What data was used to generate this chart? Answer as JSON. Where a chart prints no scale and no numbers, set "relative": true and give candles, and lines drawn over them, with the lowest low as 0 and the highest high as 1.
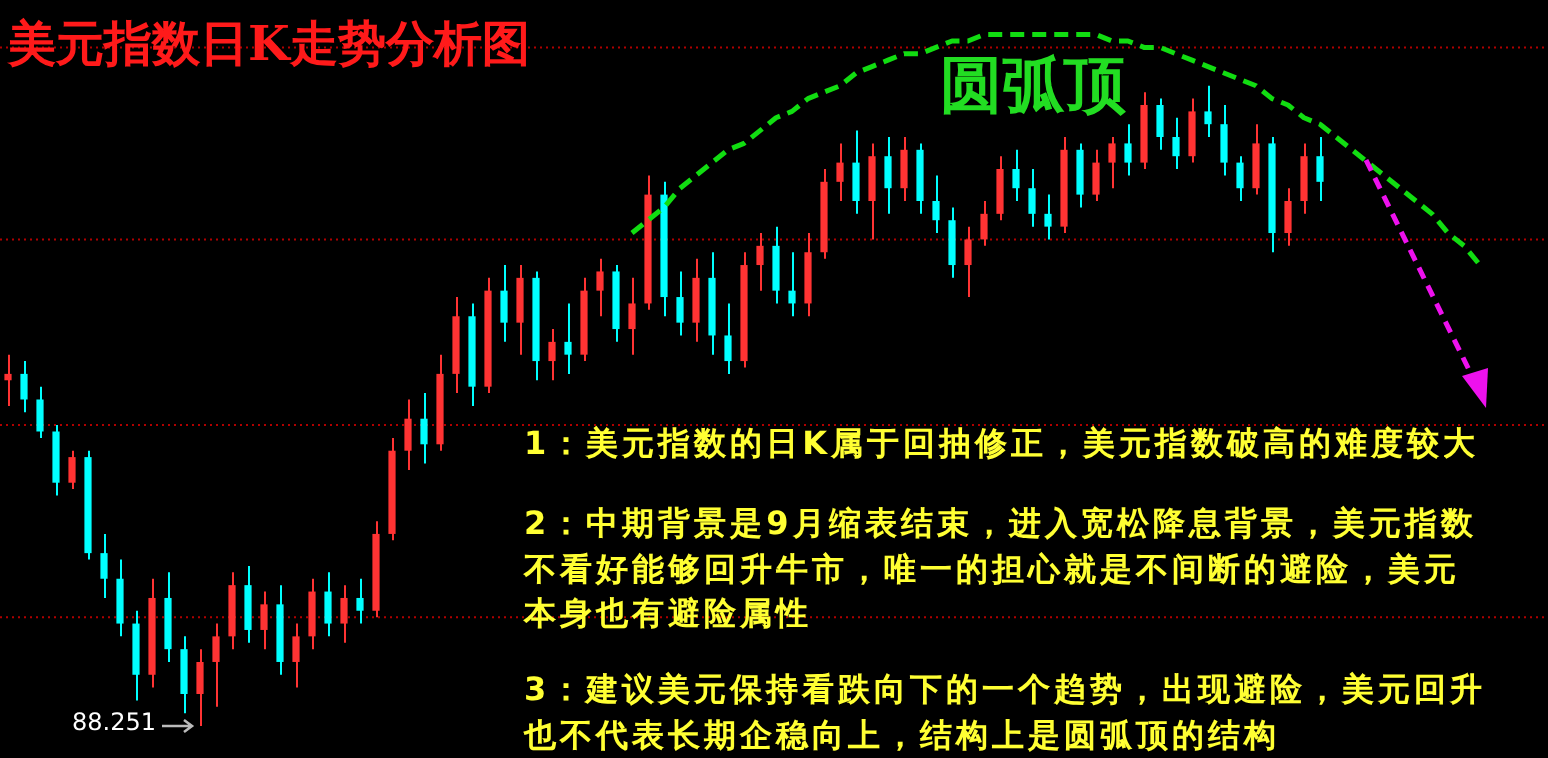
{
  "chart_data": {
    "type": "candlestick",
    "relative": true,
    "title": "美元指数日K走势分析图",
    "annotations": [
      "88.251",
      "圆弧顶",
      "1：美元指数的日K属于回抽修正，美元指数破高的难度较大",
      "2：中期背景是9月缩表结束，进入宽松降息背景，美元指数不看好能够回升牛市，唯一的担心就是不间断的避险，美元本身也有避险属性",
      "3：建议美元保持看跌向下的一个趋势，出现避险，美元回升也不代表长期企稳向上，结构上是圆弧顶的结构"
    ],
    "ref_lines": [
      {
        "axis": "y",
        "value": 1.06,
        "color": "#b00000",
        "line_style": "dotted"
      },
      {
        "axis": "y",
        "value": 0.76,
        "color": "#b00000",
        "line_style": "dotted"
      },
      {
        "axis": "y",
        "value": 0.47,
        "color": "#b00000",
        "line_style": "dotted"
      },
      {
        "axis": "y",
        "value": 0.17,
        "color": "#b00000",
        "line_style": "dotted"
      }
    ],
    "categories": [
      null,
      null,
      null,
      null,
      null,
      null,
      null,
      null,
      null,
      null,
      null,
      null,
      null,
      null,
      null,
      null,
      null,
      null,
      null,
      null,
      null,
      null,
      null,
      null,
      null,
      null,
      null,
      null,
      null,
      null,
      null,
      null,
      null,
      null,
      null,
      null,
      null,
      null,
      null,
      null,
      null,
      null,
      null,
      null,
      null,
      null,
      null,
      null,
      null,
      null,
      null,
      null,
      null,
      null,
      null,
      null,
      null,
      null,
      null,
      null,
      null,
      null,
      null,
      null,
      null,
      null,
      null,
      null,
      null,
      null,
      null,
      null,
      null,
      null,
      null,
      null,
      null,
      null,
      null,
      null,
      null,
      null,
      null,
      null,
      null,
      null,
      null,
      null,
      null,
      null,
      null,
      null,
      null
    ],
    "ohlc": [
      [
        0.54,
        0.58,
        0.5,
        0.55
      ],
      [
        0.55,
        0.57,
        0.49,
        0.51
      ],
      [
        0.51,
        0.53,
        0.45,
        0.46
      ],
      [
        0.46,
        0.47,
        0.36,
        0.38
      ],
      [
        0.38,
        0.43,
        0.37,
        0.42
      ],
      [
        0.42,
        0.43,
        0.26,
        0.27
      ],
      [
        0.27,
        0.3,
        0.2,
        0.23
      ],
      [
        0.23,
        0.26,
        0.14,
        0.16
      ],
      [
        0.16,
        0.18,
        0.04,
        0.08
      ],
      [
        0.08,
        0.23,
        0.06,
        0.2
      ],
      [
        0.2,
        0.24,
        0.1,
        0.12
      ],
      [
        0.12,
        0.14,
        0.02,
        0.05
      ],
      [
        0.05,
        0.12,
        0.0,
        0.1
      ],
      [
        0.1,
        0.16,
        0.03,
        0.14
      ],
      [
        0.14,
        0.24,
        0.12,
        0.22
      ],
      [
        0.22,
        0.25,
        0.13,
        0.15
      ],
      [
        0.15,
        0.21,
        0.12,
        0.19
      ],
      [
        0.19,
        0.22,
        0.08,
        0.1
      ],
      [
        0.1,
        0.16,
        0.06,
        0.14
      ],
      [
        0.14,
        0.23,
        0.12,
        0.21
      ],
      [
        0.21,
        0.24,
        0.14,
        0.16
      ],
      [
        0.16,
        0.22,
        0.13,
        0.2
      ],
      [
        0.2,
        0.23,
        0.16,
        0.18
      ],
      [
        0.18,
        0.32,
        0.17,
        0.3
      ],
      [
        0.3,
        0.45,
        0.29,
        0.43
      ],
      [
        0.43,
        0.51,
        0.4,
        0.48
      ],
      [
        0.48,
        0.52,
        0.41,
        0.44
      ],
      [
        0.44,
        0.58,
        0.43,
        0.55
      ],
      [
        0.55,
        0.67,
        0.52,
        0.64
      ],
      [
        0.64,
        0.66,
        0.5,
        0.53
      ],
      [
        0.53,
        0.7,
        0.52,
        0.68
      ],
      [
        0.68,
        0.72,
        0.6,
        0.63
      ],
      [
        0.63,
        0.72,
        0.58,
        0.7
      ],
      [
        0.7,
        0.71,
        0.54,
        0.57
      ],
      [
        0.57,
        0.62,
        0.54,
        0.6
      ],
      [
        0.6,
        0.66,
        0.55,
        0.58
      ],
      [
        0.58,
        0.7,
        0.57,
        0.68
      ],
      [
        0.68,
        0.73,
        0.64,
        0.71
      ],
      [
        0.71,
        0.72,
        0.6,
        0.62
      ],
      [
        0.62,
        0.7,
        0.58,
        0.66
      ],
      [
        0.66,
        0.86,
        0.65,
        0.83
      ],
      [
        0.83,
        0.85,
        0.64,
        0.67
      ],
      [
        0.67,
        0.71,
        0.61,
        0.63
      ],
      [
        0.63,
        0.73,
        0.6,
        0.7
      ],
      [
        0.7,
        0.74,
        0.58,
        0.61
      ],
      [
        0.61,
        0.66,
        0.55,
        0.57
      ],
      [
        0.57,
        0.74,
        0.56,
        0.72
      ],
      [
        0.72,
        0.77,
        0.68,
        0.75
      ],
      [
        0.75,
        0.78,
        0.66,
        0.68
      ],
      [
        0.68,
        0.74,
        0.64,
        0.66
      ],
      [
        0.66,
        0.77,
        0.64,
        0.74
      ],
      [
        0.74,
        0.87,
        0.73,
        0.85
      ],
      [
        0.85,
        0.91,
        0.82,
        0.88
      ],
      [
        0.88,
        0.93,
        0.8,
        0.82
      ],
      [
        0.82,
        0.91,
        0.76,
        0.89
      ],
      [
        0.89,
        0.92,
        0.8,
        0.84
      ],
      [
        0.84,
        0.92,
        0.82,
        0.9
      ],
      [
        0.9,
        0.91,
        0.8,
        0.82
      ],
      [
        0.82,
        0.86,
        0.77,
        0.79
      ],
      [
        0.79,
        0.81,
        0.7,
        0.72
      ],
      [
        0.72,
        0.78,
        0.67,
        0.76
      ],
      [
        0.76,
        0.82,
        0.75,
        0.8
      ],
      [
        0.8,
        0.89,
        0.79,
        0.87
      ],
      [
        0.87,
        0.9,
        0.82,
        0.84
      ],
      [
        0.84,
        0.87,
        0.78,
        0.8
      ],
      [
        0.8,
        0.83,
        0.76,
        0.78
      ],
      [
        0.78,
        0.92,
        0.77,
        0.9
      ],
      [
        0.9,
        0.91,
        0.81,
        0.83
      ],
      [
        0.83,
        0.9,
        0.82,
        0.88
      ],
      [
        0.88,
        0.92,
        0.84,
        0.91
      ],
      [
        0.91,
        0.94,
        0.86,
        0.88
      ],
      [
        0.88,
        0.99,
        0.87,
        0.97
      ],
      [
        0.97,
        0.98,
        0.9,
        0.92
      ],
      [
        0.92,
        0.95,
        0.87,
        0.89
      ],
      [
        0.89,
        0.98,
        0.88,
        0.96
      ],
      [
        0.96,
        1.0,
        0.92,
        0.94
      ],
      [
        0.94,
        0.97,
        0.86,
        0.88
      ],
      [
        0.88,
        0.89,
        0.82,
        0.84
      ],
      [
        0.84,
        0.94,
        0.83,
        0.91
      ],
      [
        0.91,
        0.92,
        0.74,
        0.77
      ],
      [
        0.77,
        0.84,
        0.75,
        0.82
      ],
      [
        0.82,
        0.91,
        0.8,
        0.89
      ],
      [
        0.89,
        0.92,
        0.82,
        0.85
      ],
      null,
      null,
      null,
      null,
      null,
      null,
      null,
      null,
      null,
      null
    ],
    "series": [
      {
        "type": "line",
        "color": "#11dd11",
        "line_style": "dashed",
        "marker": "none",
        "values": [
          null,
          null,
          null,
          null,
          null,
          null,
          null,
          null,
          null,
          null,
          null,
          null,
          null,
          null,
          null,
          null,
          null,
          null,
          null,
          null,
          null,
          null,
          null,
          null,
          null,
          null,
          null,
          null,
          null,
          null,
          null,
          null,
          null,
          null,
          null,
          null,
          null,
          null,
          null,
          0.77,
          0.79,
          0.81,
          0.84,
          0.86,
          0.88,
          0.9,
          0.91,
          0.93,
          0.95,
          0.96,
          0.98,
          0.99,
          1.0,
          1.02,
          1.03,
          1.04,
          1.05,
          1.05,
          1.06,
          1.07,
          1.07,
          1.08,
          1.08,
          1.08,
          1.08,
          1.08,
          1.08,
          1.08,
          1.08,
          1.07,
          1.07,
          1.06,
          1.06,
          1.05,
          1.04,
          1.03,
          1.02,
          1.01,
          1.0,
          0.98,
          0.97,
          0.95,
          0.94,
          0.92,
          0.9,
          0.88,
          0.86,
          0.84,
          0.82,
          0.8,
          0.77,
          0.75,
          0.72
        ]
      }
    ]
  }
}
